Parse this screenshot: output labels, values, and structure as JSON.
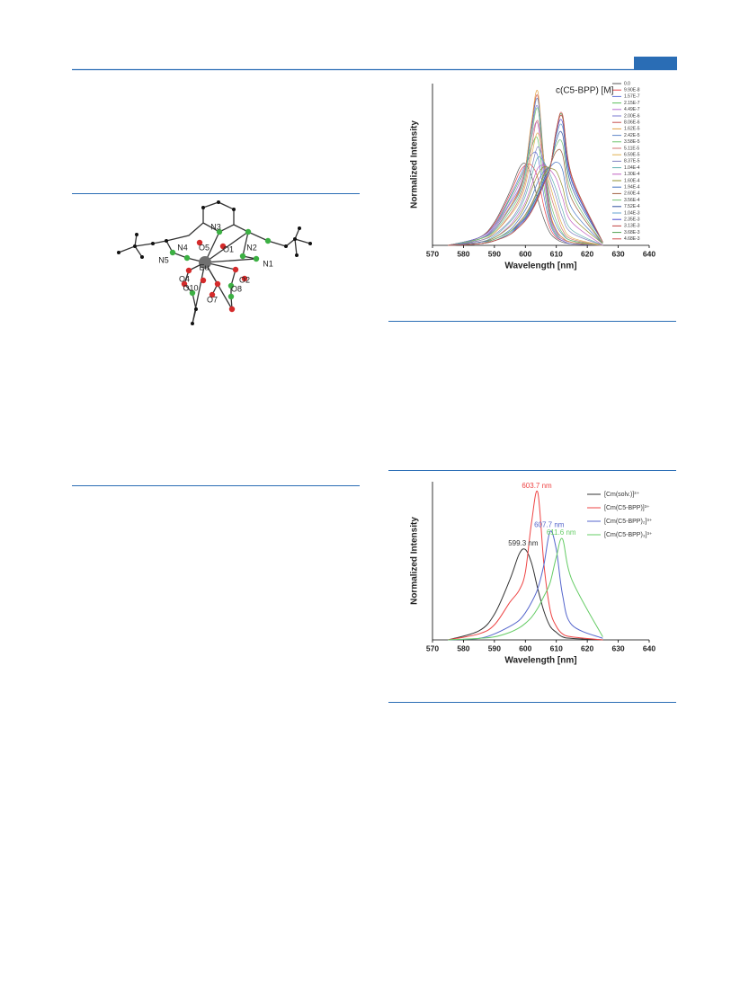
{
  "molecule": {
    "labels": [
      "N3",
      "N4",
      "O5",
      "O1",
      "N2",
      "N5",
      "Eu",
      "N1",
      "O4",
      "O2",
      "O10",
      "O8",
      "O7"
    ]
  },
  "chart_data": [
    {
      "type": "line",
      "legend_title": "c(C5-BPP) [M]",
      "x_label": "Wavelength [nm]",
      "y_label": "Normalized Intensity",
      "xlim": [
        570,
        640
      ],
      "xticks": [
        570,
        580,
        590,
        600,
        610,
        620,
        630,
        640
      ],
      "ylim": [
        0,
        1.05
      ],
      "x": [
        575,
        585,
        590,
        595,
        598,
        600,
        602,
        604,
        606,
        608,
        610,
        612,
        615,
        625
      ],
      "series": [
        {
          "name": "0.0",
          "color": "#555555",
          "values": [
            0,
            0.05,
            0.15,
            0.35,
            0.5,
            0.53,
            0.45,
            0.3,
            0.17,
            0.08,
            0.04,
            0.02,
            0.01,
            0
          ]
        },
        {
          "name": "9.90E-8",
          "color": "#e8454a",
          "values": [
            0,
            0.05,
            0.14,
            0.33,
            0.47,
            0.52,
            0.52,
            0.44,
            0.25,
            0.11,
            0.05,
            0.03,
            0.01,
            0
          ]
        },
        {
          "name": "1.57E-7",
          "color": "#5a6fd8",
          "values": [
            0,
            0.05,
            0.13,
            0.31,
            0.44,
            0.52,
            0.59,
            0.58,
            0.32,
            0.14,
            0.06,
            0.03,
            0.01,
            0
          ]
        },
        {
          "name": "2.15E-7",
          "color": "#5bbf5b",
          "values": [
            0,
            0.04,
            0.12,
            0.3,
            0.42,
            0.51,
            0.64,
            0.69,
            0.38,
            0.16,
            0.07,
            0.04,
            0.02,
            0
          ]
        },
        {
          "name": "4.49E-7",
          "color": "#b76bd1",
          "values": [
            0,
            0.04,
            0.12,
            0.28,
            0.4,
            0.51,
            0.7,
            0.79,
            0.44,
            0.18,
            0.08,
            0.04,
            0.02,
            0
          ]
        },
        {
          "name": "2.00E-6",
          "color": "#7a7ad0",
          "values": [
            0,
            0.04,
            0.11,
            0.27,
            0.37,
            0.5,
            0.75,
            0.9,
            0.49,
            0.2,
            0.09,
            0.05,
            0.02,
            0
          ]
        },
        {
          "name": "8.06E-6",
          "color": "#c85050",
          "values": [
            0,
            0.04,
            0.1,
            0.25,
            0.36,
            0.5,
            0.78,
            0.97,
            0.53,
            0.21,
            0.1,
            0.05,
            0.02,
            0
          ]
        },
        {
          "name": "1.62E-5",
          "color": "#e3a040",
          "values": [
            0,
            0.04,
            0.1,
            0.25,
            0.35,
            0.5,
            0.8,
            1.0,
            0.55,
            0.22,
            0.1,
            0.05,
            0.02,
            0
          ]
        },
        {
          "name": "2.42E-5",
          "color": "#5f86c8",
          "values": [
            0,
            0.04,
            0.1,
            0.24,
            0.34,
            0.48,
            0.76,
            0.95,
            0.55,
            0.25,
            0.13,
            0.07,
            0.03,
            0
          ]
        },
        {
          "name": "3.58E-5",
          "color": "#6fc56f",
          "values": [
            0,
            0.04,
            0.09,
            0.22,
            0.32,
            0.45,
            0.71,
            0.89,
            0.55,
            0.29,
            0.16,
            0.08,
            0.03,
            0
          ]
        },
        {
          "name": "5.11E-5",
          "color": "#d07070",
          "values": [
            0,
            0.03,
            0.08,
            0.2,
            0.3,
            0.42,
            0.64,
            0.81,
            0.55,
            0.34,
            0.21,
            0.1,
            0.04,
            0
          ]
        },
        {
          "name": "6.59E-5",
          "color": "#e0b050",
          "values": [
            0,
            0.03,
            0.08,
            0.19,
            0.28,
            0.39,
            0.58,
            0.73,
            0.55,
            0.39,
            0.25,
            0.13,
            0.05,
            0
          ]
        },
        {
          "name": "8.37E-5",
          "color": "#8080c0",
          "values": [
            0,
            0.03,
            0.07,
            0.16,
            0.25,
            0.35,
            0.5,
            0.64,
            0.54,
            0.43,
            0.31,
            0.18,
            0.08,
            0
          ]
        },
        {
          "name": "1.04E-4",
          "color": "#60b0b0",
          "values": [
            0,
            0.02,
            0.06,
            0.15,
            0.23,
            0.32,
            0.45,
            0.57,
            0.54,
            0.46,
            0.36,
            0.23,
            0.1,
            0
          ]
        },
        {
          "name": "1.30E-4",
          "color": "#c060c0",
          "values": [
            0,
            0.02,
            0.05,
            0.13,
            0.21,
            0.28,
            0.39,
            0.5,
            0.52,
            0.49,
            0.43,
            0.31,
            0.15,
            0
          ]
        },
        {
          "name": "1.60E-4",
          "color": "#909030",
          "values": [
            0,
            0.02,
            0.05,
            0.12,
            0.19,
            0.26,
            0.36,
            0.46,
            0.51,
            0.5,
            0.48,
            0.38,
            0.19,
            0.01
          ]
        },
        {
          "name": "1.94E-4",
          "color": "#4070c0",
          "values": [
            0,
            0.02,
            0.04,
            0.1,
            0.17,
            0.23,
            0.31,
            0.41,
            0.48,
            0.51,
            0.54,
            0.49,
            0.24,
            0.01
          ]
        },
        {
          "name": "2.60E-4",
          "color": "#a06040",
          "values": [
            0,
            0.01,
            0.04,
            0.09,
            0.15,
            0.2,
            0.27,
            0.36,
            0.46,
            0.52,
            0.61,
            0.59,
            0.3,
            0.01
          ]
        },
        {
          "name": "3.56E-4",
          "color": "#70c070",
          "values": [
            0,
            0.01,
            0.04,
            0.09,
            0.14,
            0.19,
            0.26,
            0.35,
            0.45,
            0.52,
            0.65,
            0.66,
            0.34,
            0.01
          ]
        },
        {
          "name": "7.52E-4",
          "color": "#3050a0",
          "values": [
            0,
            0.01,
            0.03,
            0.08,
            0.14,
            0.18,
            0.25,
            0.33,
            0.43,
            0.51,
            0.68,
            0.72,
            0.38,
            0.02
          ]
        },
        {
          "name": "1.04E-3",
          "color": "#60a0d0",
          "values": [
            0,
            0.01,
            0.03,
            0.08,
            0.13,
            0.17,
            0.24,
            0.32,
            0.42,
            0.51,
            0.71,
            0.77,
            0.41,
            0.02
          ]
        },
        {
          "name": "2.35E-3",
          "color": "#4a4ad0",
          "values": [
            0,
            0.01,
            0.03,
            0.07,
            0.13,
            0.17,
            0.23,
            0.31,
            0.41,
            0.5,
            0.73,
            0.8,
            0.42,
            0.02
          ]
        },
        {
          "name": "3.13E-3",
          "color": "#c04040",
          "values": [
            0,
            0.01,
            0.03,
            0.07,
            0.12,
            0.16,
            0.22,
            0.31,
            0.4,
            0.5,
            0.74,
            0.83,
            0.44,
            0.02
          ]
        },
        {
          "name": "3.68E-3",
          "color": "#50a050",
          "values": [
            0,
            0.01,
            0.03,
            0.07,
            0.12,
            0.16,
            0.22,
            0.3,
            0.4,
            0.5,
            0.75,
            0.84,
            0.45,
            0.02
          ]
        },
        {
          "name": "4.68E-3",
          "color": "#d05050",
          "values": [
            0,
            0.01,
            0.03,
            0.07,
            0.12,
            0.16,
            0.22,
            0.3,
            0.4,
            0.5,
            0.75,
            0.85,
            0.45,
            0.02
          ]
        }
      ]
    },
    {
      "type": "line",
      "x_label": "Wavelength [nm]",
      "y_label": "Normalized Intensity",
      "xlim": [
        570,
        640
      ],
      "xticks": [
        570,
        580,
        590,
        600,
        610,
        620,
        630,
        640
      ],
      "ylim": [
        0,
        1.05
      ],
      "x": [
        575,
        585,
        590,
        595,
        598,
        600,
        602,
        604,
        606,
        608,
        610,
        612,
        615,
        625
      ],
      "series": [
        {
          "name": "[Cm(solv.)]³⁺",
          "color": "#333333",
          "values": [
            0,
            0.06,
            0.17,
            0.4,
            0.57,
            0.6,
            0.51,
            0.34,
            0.19,
            0.09,
            0.05,
            0.02,
            0.01,
            0
          ]
        },
        {
          "name": "[Cm(C5-BPP)]³⁺",
          "color": "#ee4444",
          "values": [
            0,
            0.04,
            0.1,
            0.25,
            0.33,
            0.45,
            0.78,
            0.98,
            0.5,
            0.2,
            0.09,
            0.04,
            0.02,
            0
          ]
        },
        {
          "name": "[Cm(C5-BPP)₂]³⁺",
          "color": "#5566cc",
          "values": [
            0,
            0.01,
            0.04,
            0.09,
            0.13,
            0.18,
            0.25,
            0.34,
            0.5,
            0.72,
            0.6,
            0.3,
            0.1,
            0.01
          ]
        },
        {
          "name": "[Cm(C5-BPP)₃]³⁺",
          "color": "#66cc66",
          "values": [
            0,
            0.01,
            0.02,
            0.05,
            0.08,
            0.11,
            0.15,
            0.21,
            0.29,
            0.38,
            0.55,
            0.67,
            0.4,
            0.02
          ]
        }
      ],
      "annotations": [
        {
          "text": "599.3 nm",
          "x": 599.3,
          "y": 0.64,
          "color": "#333333"
        },
        {
          "text": "603.7 nm",
          "x": 603.7,
          "y": 1.02,
          "color": "#ee4444"
        },
        {
          "text": "607.7 nm",
          "x": 607.7,
          "y": 0.76,
          "color": "#5566cc"
        },
        {
          "text": "611.6 nm",
          "x": 611.6,
          "y": 0.71,
          "color": "#66cc66"
        }
      ]
    }
  ]
}
